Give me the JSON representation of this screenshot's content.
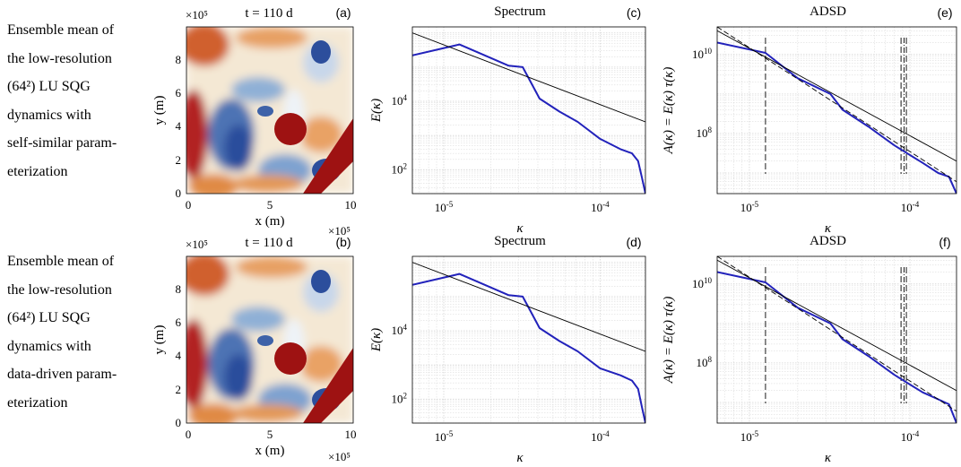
{
  "rows": [
    {
      "caption": [
        "Ensemble mean of",
        "the low-resolution",
        "(64²) LU SQG",
        "dynamics with",
        "self-similar param-",
        "eterization"
      ],
      "field": {
        "title": "t = 110 d",
        "panel": "(a)",
        "exp_top": "×10⁵",
        "exp_bottom": "×10⁵"
      },
      "spectrum": {
        "title": "Spectrum",
        "panel": "(c)",
        "xlabel": "κ",
        "ylabel": "E(κ)"
      },
      "adsd": {
        "title": "ADSD",
        "panel": "(e)",
        "xlabel": "κ",
        "ylabel": "A(κ) = E(κ) τ(κ)"
      }
    },
    {
      "caption": [
        "Ensemble mean of",
        "the low-resolution",
        "(64²) LU SQG",
        "dynamics with",
        "data-driven param-",
        "eterization"
      ],
      "field": {
        "title": "t = 110 d",
        "panel": "(b)",
        "exp_top": "×10⁵",
        "exp_bottom": "×10⁵"
      },
      "spectrum": {
        "title": "Spectrum",
        "panel": "(d)",
        "xlabel": "κ",
        "ylabel": "E(κ)"
      },
      "adsd": {
        "title": "ADSD",
        "panel": "(f)",
        "xlabel": "κ",
        "ylabel": "A(κ) = E(κ) τ(κ)"
      }
    }
  ],
  "field_axes": {
    "xlabel": "x (m)",
    "ylabel": "y (m)",
    "xticks": [
      "0",
      "5",
      "10"
    ],
    "yticks": [
      "0",
      "2",
      "4",
      "6",
      "8"
    ],
    "range": [
      0,
      10
    ]
  },
  "colors": {
    "line": "#2222bb",
    "ref": "#000000",
    "grid": "#d4d4d4",
    "hot": "#9e1212",
    "cold": "#2c4e9c"
  },
  "chart_data": [
    {
      "type": "line",
      "title": "Spectrum",
      "panel": "(c)",
      "xlabel": "κ",
      "ylabel": "E(κ)",
      "xscale": "log",
      "yscale": "log",
      "xlim": [
        6.3e-06,
        0.000195
      ],
      "ylim": [
        20,
        1500000.0
      ],
      "grid": true,
      "x_ticklabels": [
        "10-5",
        "10-4"
      ],
      "y_ticklabels": [
        "102",
        "104"
      ],
      "series": [
        {
          "x": [
            6.3e-06,
            1.26e-05,
            2.6e-05,
            3.2e-05,
            4.1e-05,
            5.5e-05,
            7.2e-05,
            0.0001,
            0.000135,
            0.00016,
            0.000175,
            0.000185,
            0.000195
          ],
          "y": [
            220000,
            460000,
            110000,
            100000,
            12000,
            5000,
            2500,
            800,
            400,
            300,
            180,
            60,
            20
          ]
        },
        {
          "x": [
            6.3e-06,
            0.000195
          ],
          "y": [
            1000000,
            2500
          ],
          "style": "reference"
        }
      ]
    },
    {
      "type": "line",
      "title": "ADSD",
      "panel": "(e)",
      "xlabel": "κ",
      "ylabel": "A(κ) = E(κ) τ(κ)",
      "xscale": "log",
      "yscale": "log",
      "xlim": [
        6.3e-06,
        0.000195
      ],
      "ylim": [
        3000000.0,
        50000000000.0
      ],
      "grid": true,
      "x_ticklabels": [
        "10-5",
        "10-4"
      ],
      "y_ticklabels": [
        "108",
        "1010"
      ],
      "vlines": [
        1.26e-05,
        8.8e-05,
        9.2e-05,
        9.5e-05
      ],
      "series": [
        {
          "x": [
            6.3e-06,
            1.26e-05,
            2e-05,
            3.2e-05,
            3.8e-05,
            5.5e-05,
            8e-05,
            0.00012,
            0.00015,
            0.000175,
            0.000195
          ],
          "y": [
            20000000000.0,
            11000000000.0,
            2500000000.0,
            1000000000.0,
            400000000.0,
            150000000.0,
            50000000.0,
            18000000.0,
            10000000.0,
            8000000.0,
            3000000.0
          ]
        },
        {
          "x": [
            6.3e-06,
            0.000195
          ],
          "y": [
            50000000000.0,
            6000000.0
          ],
          "style": "reference-dashed"
        },
        {
          "x": [
            6.3e-06,
            0.000195
          ],
          "y": [
            40000000000.0,
            20000000.0
          ],
          "style": "reference"
        }
      ]
    },
    {
      "type": "line",
      "title": "Spectrum",
      "panel": "(d)",
      "xlabel": "κ",
      "ylabel": "E(κ)",
      "xscale": "log",
      "yscale": "log",
      "xlim": [
        6.3e-06,
        0.000195
      ],
      "ylim": [
        20,
        1500000.0
      ],
      "grid": true,
      "x_ticklabels": [
        "10-5",
        "10-4"
      ],
      "y_ticklabels": [
        "102",
        "104"
      ],
      "series": [
        {
          "x": [
            6.3e-06,
            1.26e-05,
            2.6e-05,
            3.2e-05,
            4.1e-05,
            5.5e-05,
            7.2e-05,
            0.0001,
            0.000135,
            0.00016,
            0.000175,
            0.000185,
            0.000195
          ],
          "y": [
            220000,
            460000,
            110000,
            100000,
            12000,
            5000,
            2500,
            800,
            500,
            350,
            200,
            60,
            20
          ]
        },
        {
          "x": [
            6.3e-06,
            0.000195
          ],
          "y": [
            1000000,
            2500
          ],
          "style": "reference"
        }
      ]
    },
    {
      "type": "line",
      "title": "ADSD",
      "panel": "(f)",
      "xlabel": "κ",
      "ylabel": "A(κ) = E(κ) τ(κ)",
      "xscale": "log",
      "yscale": "log",
      "xlim": [
        6.3e-06,
        0.000195
      ],
      "ylim": [
        3000000.0,
        50000000000.0
      ],
      "grid": true,
      "x_ticklabels": [
        "10-5",
        "10-4"
      ],
      "y_ticklabels": [
        "108",
        "1010"
      ],
      "vlines": [
        1.26e-05,
        8.8e-05,
        9.2e-05,
        9.5e-05
      ],
      "series": [
        {
          "x": [
            6.3e-06,
            1.26e-05,
            2e-05,
            3.2e-05,
            3.8e-05,
            5.5e-05,
            8e-05,
            0.00012,
            0.00015,
            0.000175,
            0.000195
          ],
          "y": [
            20000000000.0,
            11000000000.0,
            2500000000.0,
            1000000000.0,
            400000000.0,
            150000000.0,
            50000000.0,
            18000000.0,
            12000000.0,
            9000000.0,
            3000000.0
          ]
        },
        {
          "x": [
            6.3e-06,
            0.000195
          ],
          "y": [
            50000000000.0,
            6000000.0
          ],
          "style": "reference-dashed"
        },
        {
          "x": [
            6.3e-06,
            0.000195
          ],
          "y": [
            40000000000.0,
            20000000.0
          ],
          "style": "reference"
        }
      ]
    }
  ]
}
